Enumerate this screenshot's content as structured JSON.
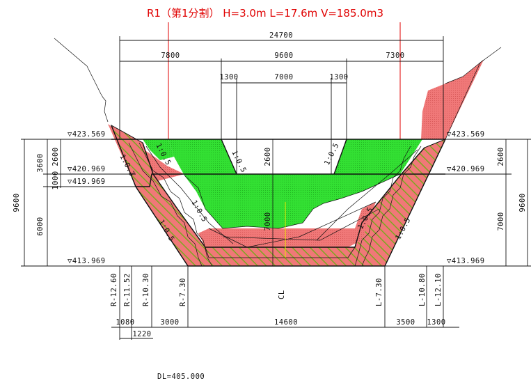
{
  "title": "R1（第1分割） H=3.0m L=17.6m V=185.0m3",
  "dims": {
    "total_width": "24700",
    "left_width": "7800",
    "center_width": "9600",
    "right_width": "7300",
    "slope_left": "1300",
    "bottom_width_top": "7000",
    "slope_right": "1300",
    "bottom_1080": "1080",
    "bottom_1220": "1220",
    "bottom_3000": "3000",
    "bottom_14600": "14600",
    "bottom_3500": "3500",
    "bottom_1300": "1300",
    "left_v_3600": "3600",
    "left_v_2600": "2600",
    "left_v_1000": "1000",
    "left_v_6000": "6000",
    "left_v_9600": "9600",
    "right_v_2600": "2600",
    "right_v_7000": "7000",
    "right_v_9600": "9600",
    "center_v_2600": "2600",
    "center_v_7000": "7000"
  },
  "elevations": {
    "left_top": "▽423.569",
    "left_mid": "▽420.969",
    "left_mid2": "▽419.969",
    "left_bottom": "▽413.969",
    "right_top": "▽423.569",
    "right_mid": "▽420.969",
    "right_bottom": "▽413.969"
  },
  "slopes": {
    "s1": "1:0.3",
    "s2": "1:0.5",
    "s3": "1:0.5",
    "s4": "1:0.5",
    "s5": "1:0.5",
    "s6": "1:0.5",
    "s7": "1:0.5",
    "s8": "1:0.5",
    "s9": "1:0.5"
  },
  "offsets": {
    "r1": "R-12.60",
    "r2": "R-11.52",
    "r3": "R-10.30",
    "r4": "R-7.30",
    "cl": "CL",
    "l1": "L-7.30",
    "l2": "L-10.80",
    "l3": "L-12.10"
  },
  "datum": "DL=405.000",
  "colors": {
    "green": "#3bdf3b",
    "red": "#f07878",
    "hatch": "#7ca820",
    "title": "#e00000"
  }
}
